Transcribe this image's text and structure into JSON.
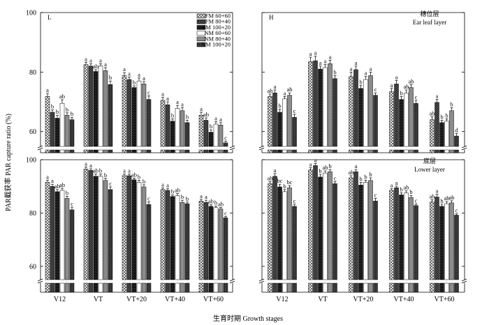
{
  "figure": {
    "ylabel": "PAR截获率 PAR capture ratio (%)",
    "xlabel": "生育时期 Growth stages"
  },
  "chart_data": {
    "type": "bar",
    "categories": [
      "V12",
      "VT",
      "VT+20",
      "VT+40",
      "VT+60"
    ],
    "ylim": [
      55,
      100
    ],
    "yticks": [
      60,
      80,
      100
    ],
    "y_axis_break": true,
    "grid": false,
    "legend": {
      "position": "top-right",
      "entries": [
        "FM 60+60",
        "FM 80+40",
        "FM 100+20",
        "NM 60+60",
        "NM 80+40",
        "NM 100+20"
      ]
    },
    "series_colors": [
      "#e8e8e8",
      "#4a4a4a",
      "#1a1a1a",
      "#ffffff",
      "#9a9a9a",
      "#2c2c2c"
    ],
    "panels": [
      {
        "label": "L",
        "title_cn": "",
        "title_en": "",
        "series": [
          {
            "name": "FM 60+60",
            "values": [
              71.8,
              82.5,
              78.8,
              70.5,
              65.5
            ],
            "errors": [
              1.0,
              0.8,
              1.0,
              1.0,
              1.0
            ],
            "letters": [
              "a",
              "a",
              "a",
              "a",
              "a"
            ]
          },
          {
            "name": "FM 80+40",
            "values": [
              66.5,
              82.0,
              77.5,
              69.0,
              63.8
            ],
            "errors": [
              0.8,
              0.8,
              0.8,
              1.0,
              0.8
            ],
            "letters": [
              "b",
              "a",
              "a",
              "a",
              "ab"
            ]
          },
          {
            "name": "FM 100+20",
            "values": [
              64.5,
              80.2,
              74.8,
              63.5,
              59.8
            ],
            "errors": [
              1.0,
              0.6,
              0.6,
              0.8,
              0.8
            ],
            "letters": [
              "b",
              "ab",
              "b",
              "b",
              "b"
            ]
          },
          {
            "name": "NM 60+60",
            "values": [
              69.5,
              82.0,
              77.0,
              67.8,
              62.5
            ],
            "errors": [
              1.2,
              0.8,
              1.0,
              1.0,
              0.8
            ],
            "letters": [
              "ab",
              "a",
              "a",
              "a",
              "a"
            ]
          },
          {
            "name": "NM 80+40",
            "values": [
              65.5,
              80.5,
              76.0,
              67.0,
              62.2
            ],
            "errors": [
              0.8,
              1.0,
              0.8,
              1.0,
              0.8
            ],
            "letters": [
              "b",
              "a",
              "a",
              "a",
              "a"
            ]
          },
          {
            "name": "NM 100+20",
            "values": [
              64.0,
              75.8,
              70.8,
              63.0,
              56.2
            ],
            "errors": [
              0.8,
              1.2,
              1.2,
              0.8,
              0.6
            ],
            "letters": [
              "b",
              "b",
              "c",
              "b",
              "c"
            ]
          }
        ]
      },
      {
        "label": "H",
        "title_cn": "穗位层",
        "title_en": "Ear leaf layer",
        "series": [
          {
            "name": "FM 60+60",
            "values": [
              71.8,
              83.5,
              78.5,
              73.5,
              64.0
            ],
            "errors": [
              0.8,
              1.5,
              1.5,
              1.0,
              1.0
            ],
            "letters": [
              "ab",
              "a",
              "a",
              "a",
              "ab"
            ]
          },
          {
            "name": "FM 80+40",
            "values": [
              73.0,
              83.8,
              80.8,
              76.0,
              69.8
            ],
            "errors": [
              1.0,
              1.5,
              1.2,
              1.2,
              1.0
            ],
            "letters": [
              "a",
              "a",
              "a",
              "a",
              "a"
            ]
          },
          {
            "name": "FM 100+20",
            "values": [
              66.5,
              81.0,
              74.5,
              70.8,
              63.0
            ],
            "errors": [
              1.0,
              1.0,
              1.0,
              1.0,
              0.8
            ],
            "letters": [
              "b",
              "a",
              "b",
              "b",
              "b"
            ]
          },
          {
            "name": "NM 60+60",
            "values": [
              71.0,
              81.5,
              77.5,
              73.0,
              63.5
            ],
            "errors": [
              0.8,
              1.0,
              1.0,
              1.0,
              0.8
            ],
            "letters": [
              "a",
              "a",
              "a",
              "ab",
              "b"
            ]
          },
          {
            "name": "NM 80+40",
            "values": [
              72.2,
              82.8,
              78.8,
              74.8,
              67.0
            ],
            "errors": [
              0.8,
              1.2,
              1.2,
              1.0,
              1.0
            ],
            "letters": [
              "ab",
              "a",
              "a",
              "ab",
              "b"
            ]
          },
          {
            "name": "NM 100+20",
            "values": [
              64.8,
              77.8,
              72.2,
              69.5,
              58.5
            ],
            "errors": [
              1.0,
              1.0,
              0.8,
              1.0,
              0.8
            ],
            "letters": [
              "c",
              "b",
              "c",
              "c",
              "d"
            ]
          }
        ]
      },
      {
        "label": "",
        "title_cn": "",
        "title_en": "",
        "series": [
          {
            "name": "FM 60+60",
            "values": [
              91.5,
              96.5,
              94.0,
              88.8,
              84.5
            ],
            "errors": [
              0.8,
              0.8,
              0.6,
              0.6,
              0.6
            ],
            "letters": [
              "a",
              "a",
              "a",
              "a",
              "a"
            ]
          },
          {
            "name": "FM 80+40",
            "values": [
              90.0,
              96.0,
              94.0,
              88.5,
              84.0
            ],
            "errors": [
              0.8,
              0.6,
              0.6,
              0.6,
              0.8
            ],
            "letters": [
              "a",
              "a",
              "a",
              "a",
              "a"
            ]
          },
          {
            "name": "FM 100+20",
            "values": [
              88.0,
              93.8,
              92.5,
              86.2,
              82.5
            ],
            "errors": [
              0.8,
              0.8,
              0.6,
              0.6,
              0.6
            ],
            "letters": [
              "ab",
              "ab",
              "ab",
              "b",
              "ab"
            ]
          },
          {
            "name": "NM 60+60",
            "values": [
              88.5,
              93.8,
              91.5,
              86.5,
              82.0
            ],
            "errors": [
              0.8,
              0.8,
              0.8,
              0.8,
              0.6
            ],
            "letters": [
              "ab",
              "b",
              "b",
              "ab",
              "b"
            ]
          },
          {
            "name": "NM 80+40",
            "values": [
              85.5,
              92.2,
              89.8,
              84.0,
              81.5
            ],
            "errors": [
              0.8,
              0.8,
              0.8,
              0.8,
              0.6
            ],
            "letters": [
              "b",
              "b",
              "b",
              "b",
              "ab"
            ]
          },
          {
            "name": "NM 100+20",
            "values": [
              81.2,
              88.8,
              83.2,
              83.5,
              78.2
            ],
            "errors": [
              1.0,
              1.0,
              1.0,
              0.6,
              0.5
            ],
            "letters": [
              "c",
              "c",
              "c",
              "b",
              "c"
            ]
          }
        ]
      },
      {
        "label": "",
        "title_cn": "底层",
        "title_en": "Lower layer",
        "series": [
          {
            "name": "FM 60+60",
            "values": [
              91.0,
              96.2,
              93.2,
              88.5,
              84.2
            ],
            "errors": [
              0.8,
              0.8,
              0.8,
              0.6,
              0.8
            ],
            "letters": [
              "ab",
              "a",
              "ab",
              "a",
              "ab"
            ]
          },
          {
            "name": "FM 80+40",
            "values": [
              93.8,
              97.8,
              95.5,
              89.5,
              86.0
            ],
            "errors": [
              1.0,
              0.8,
              0.8,
              0.6,
              1.0
            ],
            "letters": [
              "a",
              "a",
              "a",
              "a",
              "a"
            ]
          },
          {
            "name": "FM 100+20",
            "values": [
              89.8,
              93.5,
              90.5,
              86.8,
              82.5
            ],
            "errors": [
              1.0,
              1.0,
              1.0,
              0.8,
              0.8
            ],
            "letters": [
              "bc",
              "b",
              "b",
              "b",
              "b"
            ]
          },
          {
            "name": "NM 60+60",
            "values": [
              88.0,
              95.0,
              91.5,
              87.5,
              83.5
            ],
            "errors": [
              0.8,
              0.8,
              0.8,
              0.8,
              0.8
            ],
            "letters": [
              "b",
              "ab",
              "b",
              "ab",
              "ab"
            ]
          },
          {
            "name": "NM 80+40",
            "values": [
              89.5,
              95.5,
              92.2,
              85.8,
              83.8
            ],
            "errors": [
              0.8,
              0.8,
              1.0,
              0.8,
              0.8
            ],
            "letters": [
              "bc",
              "b",
              "b",
              "b",
              "ab"
            ]
          },
          {
            "name": "NM 100+20",
            "values": [
              82.5,
              91.0,
              84.5,
              82.8,
              79.2
            ],
            "errors": [
              0.8,
              0.8,
              1.0,
              0.6,
              0.5
            ],
            "letters": [
              "c",
              "c",
              "c",
              "c",
              "c"
            ]
          }
        ]
      }
    ]
  }
}
